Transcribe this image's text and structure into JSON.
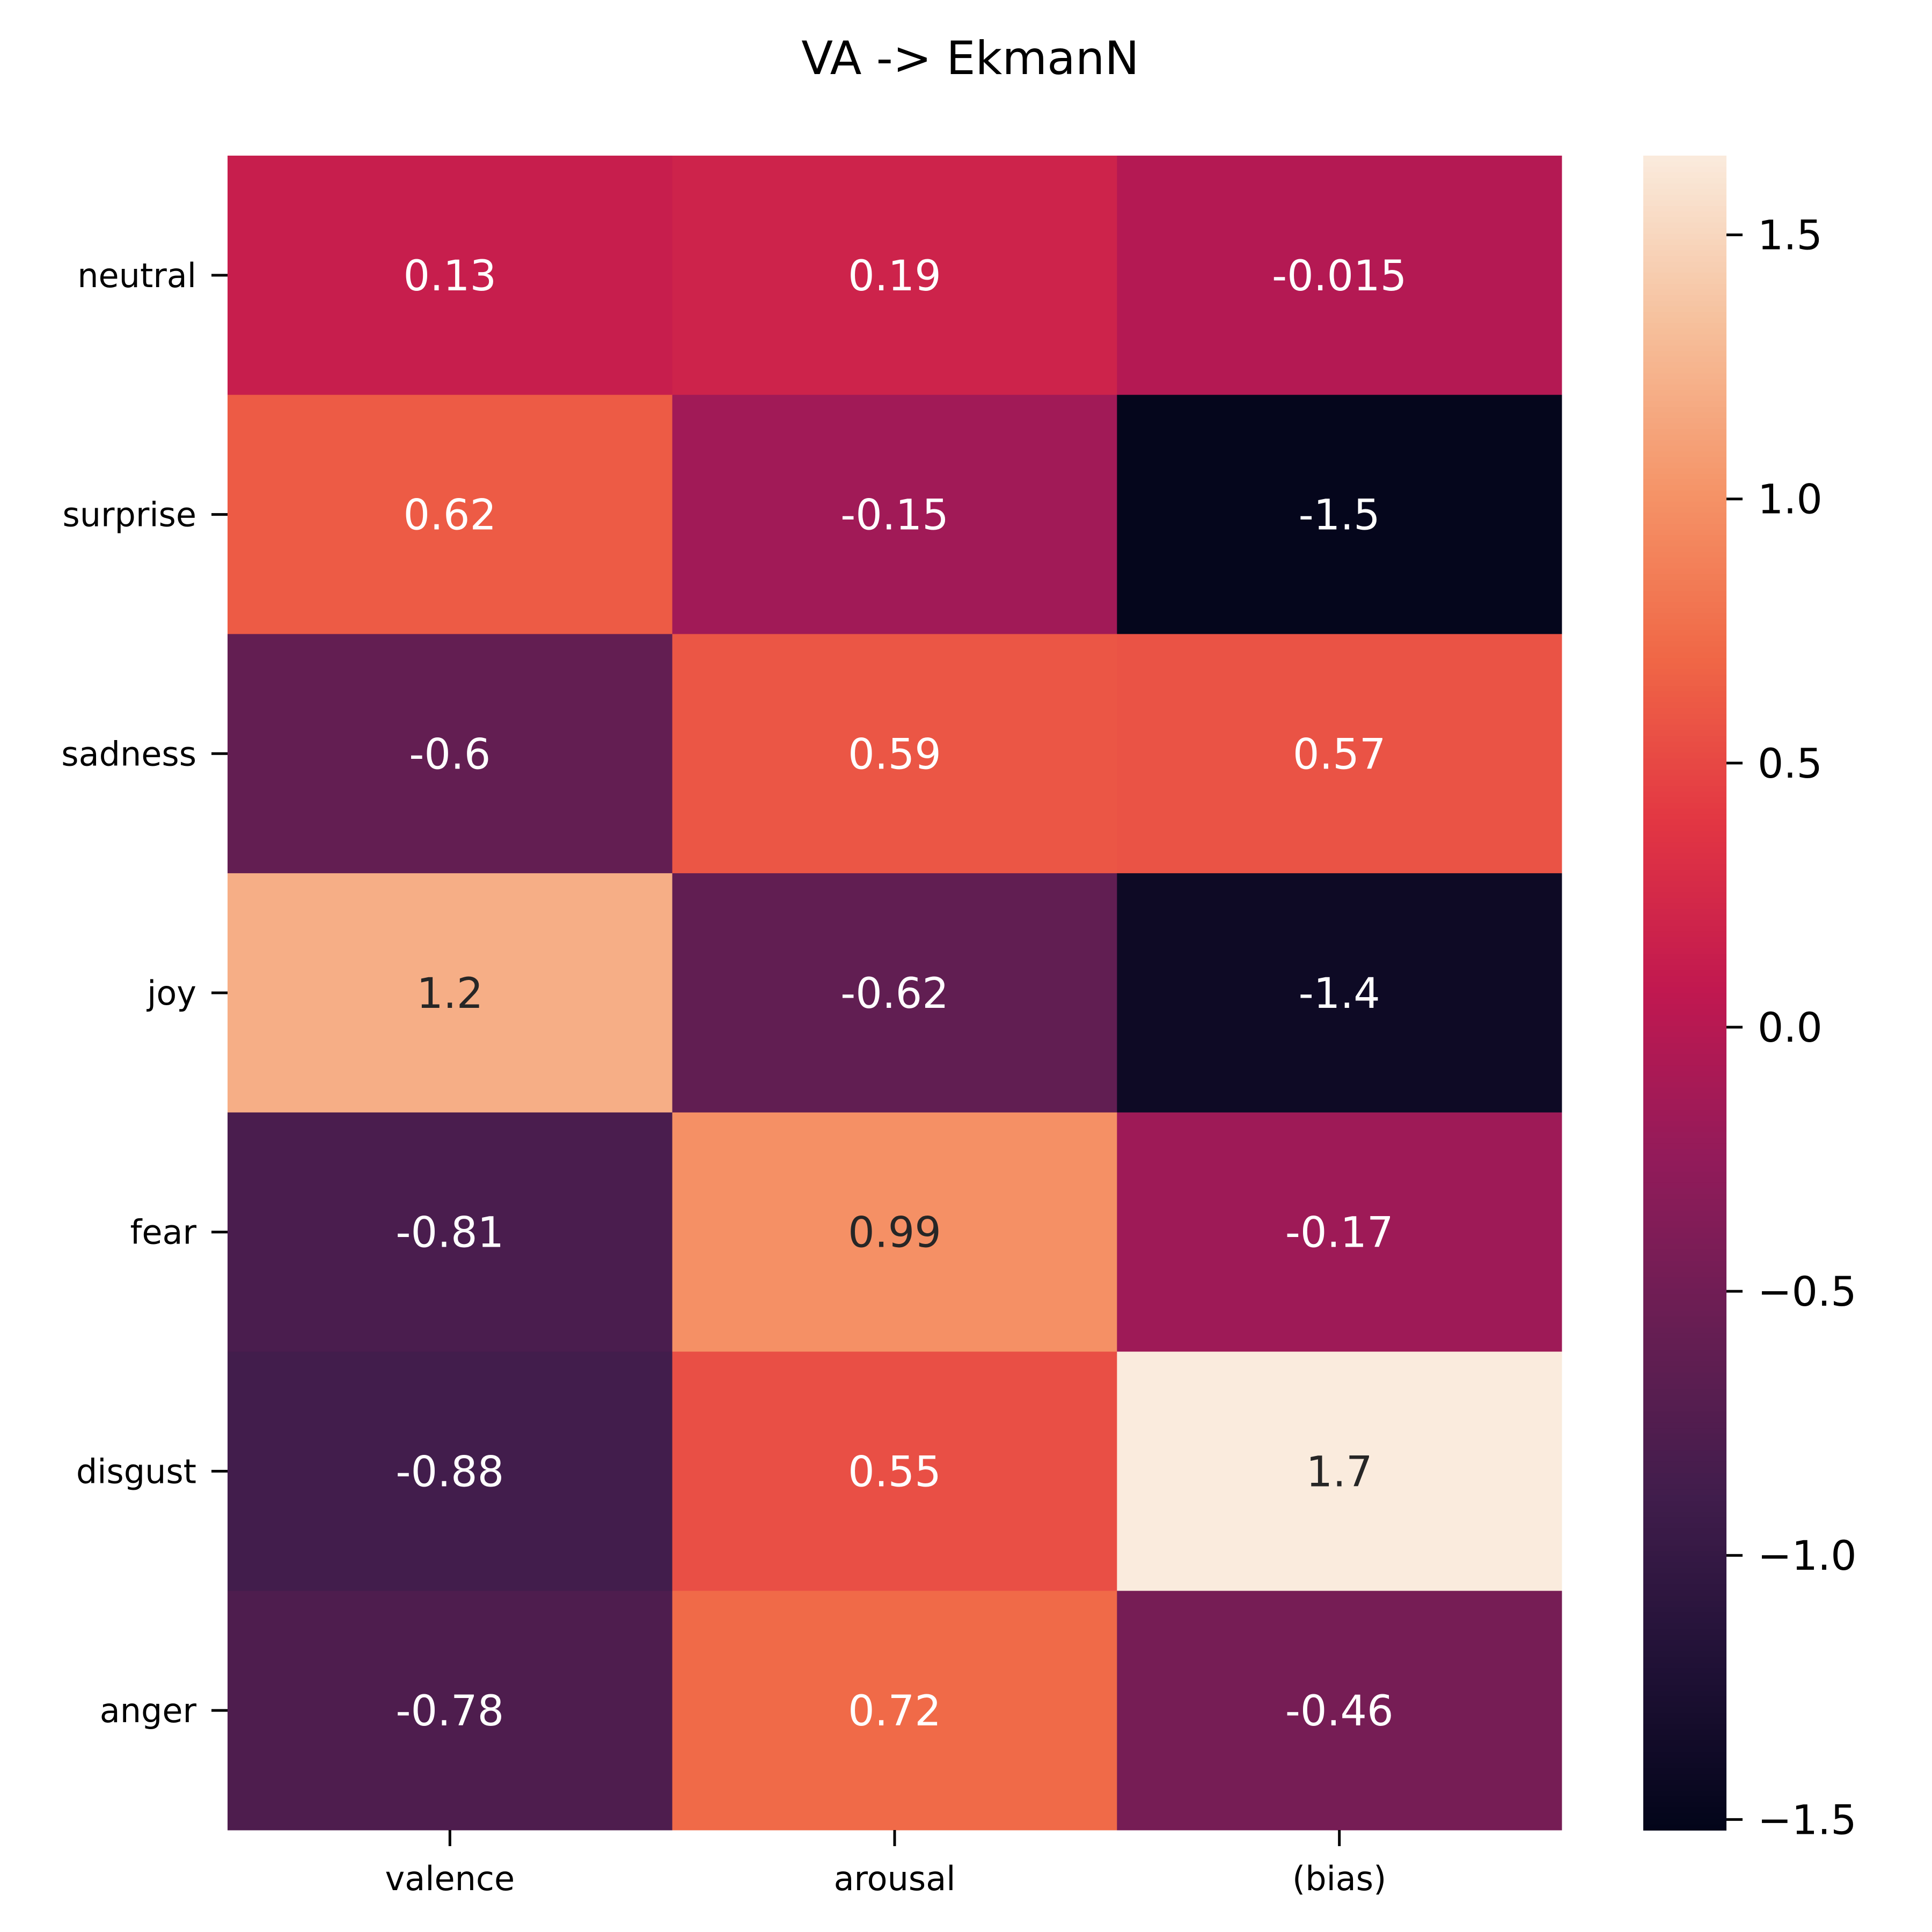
{
  "chart_data": {
    "type": "heatmap",
    "title": "VA -> EkmanN",
    "x_categories": [
      "valence",
      "arousal",
      "(bias)"
    ],
    "y_categories": [
      "neutral",
      "surprise",
      "sadness",
      "joy",
      "fear",
      "disgust",
      "anger"
    ],
    "values": [
      [
        0.13,
        0.19,
        -0.015
      ],
      [
        0.62,
        -0.15,
        -1.5
      ],
      [
        -0.6,
        0.59,
        0.57
      ],
      [
        1.2,
        -0.62,
        -1.4
      ],
      [
        -0.81,
        0.99,
        -0.17
      ],
      [
        -0.88,
        0.55,
        1.7
      ],
      [
        -0.78,
        0.72,
        -0.46
      ]
    ],
    "value_labels": [
      [
        "0.13",
        "0.19",
        "-0.015"
      ],
      [
        "0.62",
        "-0.15",
        "-1.5"
      ],
      [
        "-0.6",
        "0.59",
        "0.57"
      ],
      [
        "1.2",
        "-0.62",
        "-1.4"
      ],
      [
        "-0.81",
        "0.99",
        "-0.17"
      ],
      [
        "-0.88",
        "0.55",
        "1.7"
      ],
      [
        "-0.78",
        "0.72",
        "-0.46"
      ]
    ],
    "colorbar": {
      "range": [
        -1.52,
        1.65
      ],
      "ticks": [
        1.5,
        1.0,
        0.5,
        0.0,
        -0.5,
        -1.0,
        -1.5
      ],
      "tick_labels": [
        "1.5",
        "1.0",
        "0.5",
        "0.0",
        "−0.5",
        "−1.0",
        "−1.5"
      ],
      "colormap": "rocket"
    },
    "grid": false,
    "legend": "none"
  }
}
